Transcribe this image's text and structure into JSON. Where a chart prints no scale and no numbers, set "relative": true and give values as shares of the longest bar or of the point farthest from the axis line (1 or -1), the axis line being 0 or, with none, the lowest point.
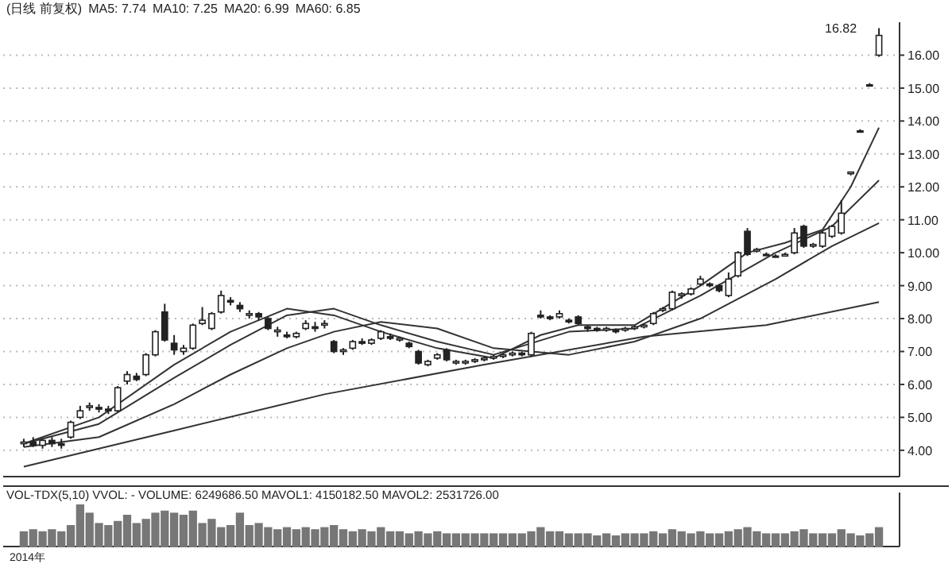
{
  "chart_data": [
    {
      "type": "candlestick",
      "title": "(日线 前复权)",
      "annotations": [
        "MA5: 7.74",
        "MA10: 7.25",
        "MA20: 6.99",
        "MA60: 6.85",
        "16.82"
      ],
      "categories": [
        null,
        null,
        null,
        null,
        null,
        null,
        null,
        null,
        null,
        null,
        null,
        null,
        null,
        null,
        null,
        null,
        null,
        null,
        null,
        null,
        null,
        null,
        null,
        null,
        null,
        null,
        null,
        null,
        null,
        null,
        null,
        null,
        null,
        null,
        null,
        null,
        null,
        null,
        null,
        null,
        null,
        null,
        null,
        null,
        null,
        null,
        null,
        null,
        null,
        null,
        null,
        null,
        null,
        null,
        null,
        null,
        null,
        null,
        null,
        null,
        null,
        null,
        null,
        null,
        null,
        null,
        null,
        null,
        null,
        null,
        null,
        null,
        null,
        null,
        null,
        null,
        null,
        null,
        null,
        null,
        null,
        null,
        null,
        null,
        null,
        null,
        null,
        null,
        null,
        null,
        null,
        null
      ],
      "ohlc": [
        [
          4.2,
          4.35,
          4.1,
          4.25
        ],
        [
          4.25,
          4.4,
          4.1,
          4.15
        ],
        [
          4.15,
          4.35,
          4.05,
          4.3
        ],
        [
          4.3,
          4.4,
          4.1,
          4.2
        ],
        [
          4.2,
          4.35,
          4.05,
          4.15
        ],
        [
          4.4,
          4.9,
          4.35,
          4.85
        ],
        [
          5.0,
          5.35,
          4.95,
          5.2
        ],
        [
          5.3,
          5.45,
          5.2,
          5.35
        ],
        [
          5.3,
          5.4,
          5.15,
          5.25
        ],
        [
          5.25,
          5.35,
          5.1,
          5.2
        ],
        [
          5.2,
          5.95,
          5.15,
          5.9
        ],
        [
          6.1,
          6.4,
          6.0,
          6.3
        ],
        [
          6.25,
          6.35,
          6.1,
          6.15
        ],
        [
          6.3,
          6.95,
          6.25,
          6.9
        ],
        [
          6.9,
          7.65,
          6.85,
          7.6
        ],
        [
          8.2,
          8.45,
          7.3,
          7.35
        ],
        [
          7.25,
          7.5,
          6.9,
          7.05
        ],
        [
          7.0,
          7.2,
          6.9,
          7.1
        ],
        [
          7.1,
          7.85,
          7.05,
          7.8
        ],
        [
          7.85,
          8.35,
          7.8,
          7.95
        ],
        [
          7.7,
          8.2,
          7.65,
          8.15
        ],
        [
          8.2,
          8.85,
          8.15,
          8.7
        ],
        [
          8.55,
          8.65,
          8.4,
          8.5
        ],
        [
          8.4,
          8.5,
          8.2,
          8.3
        ],
        [
          8.1,
          8.25,
          8.0,
          8.15
        ],
        [
          8.15,
          8.2,
          7.95,
          8.05
        ],
        [
          8.0,
          8.05,
          7.65,
          7.7
        ],
        [
          7.6,
          7.75,
          7.45,
          7.65
        ],
        [
          7.5,
          7.6,
          7.4,
          7.45
        ],
        [
          7.45,
          7.6,
          7.4,
          7.55
        ],
        [
          7.7,
          7.95,
          7.65,
          7.85
        ],
        [
          7.75,
          7.9,
          7.6,
          7.7
        ],
        [
          7.8,
          7.95,
          7.7,
          7.85
        ],
        [
          7.3,
          7.35,
          6.95,
          7.0
        ],
        [
          7.0,
          7.1,
          6.9,
          7.05
        ],
        [
          7.1,
          7.35,
          7.05,
          7.3
        ],
        [
          7.3,
          7.4,
          7.2,
          7.25
        ],
        [
          7.25,
          7.4,
          7.2,
          7.35
        ],
        [
          7.4,
          7.65,
          7.35,
          7.6
        ],
        [
          7.45,
          7.55,
          7.35,
          7.4
        ],
        [
          7.35,
          7.45,
          7.3,
          7.4
        ],
        [
          7.25,
          7.3,
          7.1,
          7.15
        ],
        [
          7.0,
          7.05,
          6.6,
          6.65
        ],
        [
          6.6,
          6.75,
          6.55,
          6.7
        ],
        [
          6.8,
          6.95,
          6.75,
          6.9
        ],
        [
          7.05,
          7.1,
          6.7,
          6.75
        ],
        [
          6.65,
          6.75,
          6.6,
          6.7
        ],
        [
          6.65,
          6.75,
          6.6,
          6.7
        ],
        [
          6.7,
          6.8,
          6.65,
          6.75
        ],
        [
          6.75,
          6.85,
          6.7,
          6.8
        ],
        [
          6.8,
          6.9,
          6.75,
          6.85
        ],
        [
          6.85,
          6.95,
          6.8,
          6.9
        ],
        [
          6.9,
          7.0,
          6.85,
          6.95
        ],
        [
          6.95,
          7.0,
          6.85,
          6.9
        ],
        [
          6.9,
          7.6,
          6.85,
          7.55
        ],
        [
          8.1,
          8.25,
          8.0,
          8.05
        ],
        [
          8.05,
          8.1,
          7.95,
          8.0
        ],
        [
          8.05,
          8.25,
          8.0,
          8.15
        ],
        [
          7.95,
          8.0,
          7.85,
          7.9
        ],
        [
          8.05,
          8.1,
          7.8,
          7.85
        ],
        [
          7.75,
          7.8,
          7.6,
          7.7
        ],
        [
          7.7,
          7.75,
          7.6,
          7.65
        ],
        [
          7.65,
          7.75,
          7.6,
          7.7
        ],
        [
          7.65,
          7.7,
          7.55,
          7.6
        ],
        [
          7.65,
          7.75,
          7.6,
          7.7
        ],
        [
          7.7,
          7.8,
          7.65,
          7.75
        ],
        [
          7.75,
          7.85,
          7.7,
          7.8
        ],
        [
          7.85,
          8.2,
          7.8,
          8.15
        ],
        [
          8.25,
          8.35,
          8.2,
          8.3
        ],
        [
          8.3,
          8.85,
          8.25,
          8.8
        ],
        [
          8.7,
          8.8,
          8.6,
          8.75
        ],
        [
          8.75,
          8.95,
          8.7,
          8.9
        ],
        [
          9.05,
          9.3,
          9.0,
          9.2
        ],
        [
          9.05,
          9.1,
          8.95,
          9.0
        ],
        [
          9.0,
          9.05,
          8.8,
          8.85
        ],
        [
          8.7,
          9.4,
          8.65,
          9.2
        ],
        [
          9.3,
          10.05,
          9.25,
          10.0
        ],
        [
          10.65,
          10.75,
          9.9,
          9.95
        ],
        [
          10.05,
          10.15,
          10.0,
          10.1
        ],
        [
          9.95,
          10.0,
          9.9,
          9.95
        ],
        [
          9.9,
          9.95,
          9.85,
          9.9
        ],
        [
          9.9,
          10.0,
          9.9,
          9.95
        ],
        [
          10.0,
          10.75,
          9.95,
          10.6
        ],
        [
          10.8,
          10.85,
          10.15,
          10.2
        ],
        [
          10.2,
          10.3,
          10.15,
          10.25
        ],
        [
          10.2,
          10.65,
          10.15,
          10.6
        ],
        [
          10.5,
          10.85,
          10.45,
          10.8
        ],
        [
          10.6,
          11.6,
          10.55,
          11.2
        ],
        [
          12.4,
          12.45,
          12.35,
          12.45
        ],
        [
          13.7,
          13.75,
          13.65,
          13.7
        ],
        [
          15.1,
          15.15,
          15.05,
          15.1
        ],
        [
          16.0,
          16.82,
          15.95,
          16.6
        ]
      ],
      "series": [
        {
          "type": "line",
          "color": "#333333",
          "values": [
            4.2,
            null,
            null,
            null,
            null,
            null,
            null,
            null,
            5.0,
            null,
            null,
            null,
            null,
            null,
            null,
            null,
            6.6,
            null,
            null,
            null,
            null,
            null,
            7.6,
            null,
            null,
            null,
            null,
            null,
            8.3,
            null,
            null,
            null,
            null,
            8.1,
            null,
            null,
            null,
            null,
            7.6,
            null,
            null,
            null,
            null,
            null,
            7.1,
            null,
            null,
            null,
            null,
            null,
            6.8,
            null,
            null,
            null,
            null,
            7.5,
            null,
            null,
            null,
            7.8,
            null,
            null,
            null,
            null,
            null,
            7.8,
            null,
            null,
            null,
            null,
            null,
            null,
            9.0,
            null,
            null,
            null,
            null,
            10.0,
            null,
            null,
            null,
            10.3,
            null,
            null,
            null,
            10.7,
            null,
            null,
            12.0,
            null,
            null,
            13.8
          ]
        },
        {
          "type": "line",
          "color": "#333333",
          "values": [
            4.2,
            null,
            null,
            null,
            null,
            null,
            null,
            null,
            4.8,
            null,
            null,
            null,
            null,
            null,
            null,
            null,
            6.2,
            null,
            null,
            null,
            null,
            null,
            7.2,
            null,
            null,
            null,
            null,
            null,
            8.1,
            null,
            null,
            null,
            null,
            8.3,
            null,
            null,
            null,
            null,
            7.8,
            null,
            null,
            null,
            null,
            null,
            7.3,
            null,
            null,
            null,
            null,
            null,
            6.9,
            null,
            null,
            null,
            null,
            null,
            null,
            null,
            7.6,
            null,
            null,
            null,
            null,
            null,
            null,
            7.7,
            null,
            null,
            null,
            null,
            null,
            null,
            8.7,
            null,
            null,
            null,
            null,
            null,
            null,
            null,
            10.0,
            null,
            null,
            null,
            null,
            null,
            10.8,
            null,
            null,
            null,
            null,
            12.2
          ]
        },
        {
          "type": "line",
          "color": "#333333",
          "values": [
            4.1,
            null,
            null,
            null,
            null,
            null,
            null,
            null,
            4.4,
            null,
            null,
            null,
            null,
            null,
            null,
            null,
            5.4,
            null,
            null,
            null,
            null,
            null,
            6.3,
            null,
            null,
            null,
            null,
            null,
            7.1,
            null,
            null,
            null,
            null,
            7.6,
            null,
            null,
            null,
            null,
            7.9,
            null,
            null,
            null,
            null,
            null,
            7.7,
            null,
            null,
            null,
            null,
            null,
            7.1,
            null,
            null,
            null,
            null,
            null,
            null,
            null,
            6.9,
            null,
            null,
            null,
            null,
            null,
            null,
            7.3,
            null,
            null,
            null,
            null,
            null,
            null,
            8.0,
            null,
            null,
            null,
            null,
            null,
            null,
            null,
            9.2,
            null,
            null,
            null,
            null,
            null,
            10.2,
            null,
            null,
            null,
            null,
            10.9
          ]
        },
        {
          "type": "line",
          "color": "#333333",
          "values": [
            3.5,
            null,
            null,
            null,
            null,
            null,
            null,
            null,
            null,
            null,
            null,
            null,
            null,
            null,
            null,
            null,
            4.6,
            null,
            null,
            null,
            null,
            null,
            null,
            null,
            null,
            null,
            null,
            null,
            null,
            null,
            null,
            null,
            5.7,
            null,
            null,
            null,
            null,
            null,
            null,
            null,
            null,
            null,
            null,
            null,
            null,
            null,
            null,
            null,
            null,
            6.6,
            null,
            null,
            null,
            null,
            null,
            null,
            null,
            null,
            null,
            null,
            null,
            null,
            null,
            null,
            null,
            null,
            7.45,
            null,
            null,
            null,
            null,
            null,
            null,
            null,
            null,
            null,
            null,
            null,
            null,
            7.8,
            null,
            null,
            null,
            null,
            null,
            null,
            null,
            null,
            null,
            null,
            null,
            8.5
          ]
        }
      ],
      "ylim": [
        3.2,
        17.0
      ],
      "yticks": [
        {
          "value": 4,
          "label": "4.00"
        },
        {
          "value": 5,
          "label": "5.00"
        },
        {
          "value": 6,
          "label": "6.00"
        },
        {
          "value": 7,
          "label": "7.00"
        },
        {
          "value": 8,
          "label": "8.00"
        },
        {
          "value": 9,
          "label": "9.00"
        },
        {
          "value": 10,
          "label": "10.00"
        },
        {
          "value": 11,
          "label": "11.00"
        },
        {
          "value": 12,
          "label": "12.00"
        },
        {
          "value": 13,
          "label": "13.00"
        },
        {
          "value": 14,
          "label": "14.00"
        },
        {
          "value": 15,
          "label": "15.00"
        },
        {
          "value": 16,
          "label": "16.00"
        }
      ],
      "grid": "y"
    },
    {
      "type": "bar",
      "title": "VOL-TDX(5,10) VVOL: - VOLUME: 6249686.50 MAVOL1: 4150182.50 MAVOL2: 2531726.00",
      "relative": true,
      "annotations": [
        "2014年"
      ],
      "categories": [
        null,
        null,
        null,
        null,
        null,
        null,
        null,
        null,
        null,
        null,
        null,
        null,
        null,
        null,
        null,
        null,
        null,
        null,
        null,
        null,
        null,
        null,
        null,
        null,
        null,
        null,
        null,
        null,
        null,
        null,
        null,
        null,
        null,
        null,
        null,
        null,
        null,
        null,
        null,
        null,
        null,
        null,
        null,
        null,
        null,
        null,
        null,
        null,
        null,
        null,
        null,
        null,
        null,
        null,
        null,
        null,
        null,
        null,
        null,
        null,
        null,
        null,
        null,
        null,
        null,
        null,
        null,
        null,
        null,
        null,
        null,
        null,
        null,
        null,
        null,
        null,
        null,
        null,
        null,
        null,
        null,
        null,
        null,
        null,
        null,
        null,
        null,
        null,
        null,
        null,
        null,
        null
      ],
      "series": [
        {
          "color": "#777777",
          "values": [
            0.35,
            0.4,
            0.35,
            0.4,
            0.35,
            0.5,
            1.0,
            0.8,
            0.55,
            0.5,
            0.6,
            0.75,
            0.55,
            0.65,
            0.8,
            0.85,
            0.8,
            0.75,
            0.85,
            0.55,
            0.65,
            0.45,
            0.5,
            0.8,
            0.5,
            0.55,
            0.45,
            0.4,
            0.45,
            0.4,
            0.45,
            0.4,
            0.45,
            0.5,
            0.4,
            0.35,
            0.4,
            0.35,
            0.45,
            0.35,
            0.35,
            0.3,
            0.35,
            0.3,
            0.35,
            0.3,
            0.3,
            0.3,
            0.3,
            0.3,
            0.3,
            0.3,
            0.3,
            0.3,
            0.35,
            0.45,
            0.35,
            0.35,
            0.3,
            0.3,
            0.3,
            0.25,
            0.3,
            0.25,
            0.3,
            0.3,
            0.3,
            0.35,
            0.3,
            0.4,
            0.35,
            0.3,
            0.35,
            0.3,
            0.3,
            0.35,
            0.4,
            0.45,
            0.35,
            0.3,
            0.3,
            0.3,
            0.35,
            0.4,
            0.3,
            0.3,
            0.3,
            0.4,
            0.3,
            0.25,
            0.3,
            0.45
          ]
        }
      ]
    }
  ]
}
